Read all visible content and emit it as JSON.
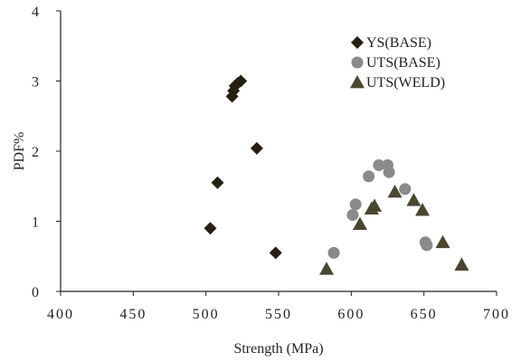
{
  "chart_data": {
    "type": "scatter",
    "title": "",
    "xlabel": "Strength (MPa)",
    "ylabel": "PDF%",
    "xlim": [
      400,
      700
    ],
    "ylim": [
      0,
      4
    ],
    "x_ticks": [
      "400",
      "450",
      "500",
      "550",
      "600",
      "650",
      "700"
    ],
    "y_ticks": [
      "0",
      "1",
      "2",
      "3",
      "4"
    ],
    "grid": false,
    "legend_position": "top-right",
    "series": [
      {
        "name": "YS(BASE)",
        "marker": "diamond",
        "color": "#262013",
        "points": [
          {
            "x": 503,
            "y": 0.9
          },
          {
            "x": 508,
            "y": 1.55
          },
          {
            "x": 518,
            "y": 2.78
          },
          {
            "x": 519,
            "y": 2.86
          },
          {
            "x": 520,
            "y": 2.93
          },
          {
            "x": 522,
            "y": 2.97
          },
          {
            "x": 524,
            "y": 3.0
          },
          {
            "x": 535,
            "y": 2.04
          },
          {
            "x": 548,
            "y": 0.55
          }
        ]
      },
      {
        "name": "UTS(BASE)",
        "marker": "circle",
        "color": "#8a8a8a",
        "points": [
          {
            "x": 588,
            "y": 0.55
          },
          {
            "x": 601,
            "y": 1.09
          },
          {
            "x": 603,
            "y": 1.24
          },
          {
            "x": 612,
            "y": 1.64
          },
          {
            "x": 619,
            "y": 1.8
          },
          {
            "x": 625,
            "y": 1.8
          },
          {
            "x": 626,
            "y": 1.7
          },
          {
            "x": 637,
            "y": 1.46
          },
          {
            "x": 651,
            "y": 0.7
          },
          {
            "x": 652,
            "y": 0.66
          }
        ]
      },
      {
        "name": "UTS(WELD)",
        "marker": "triangle",
        "color": "#4a4630",
        "points": [
          {
            "x": 583,
            "y": 0.32
          },
          {
            "x": 606,
            "y": 0.96
          },
          {
            "x": 614,
            "y": 1.18
          },
          {
            "x": 616,
            "y": 1.22
          },
          {
            "x": 630,
            "y": 1.42
          },
          {
            "x": 643,
            "y": 1.3
          },
          {
            "x": 649,
            "y": 1.16
          },
          {
            "x": 663,
            "y": 0.7
          },
          {
            "x": 676,
            "y": 0.38
          }
        ]
      }
    ]
  }
}
